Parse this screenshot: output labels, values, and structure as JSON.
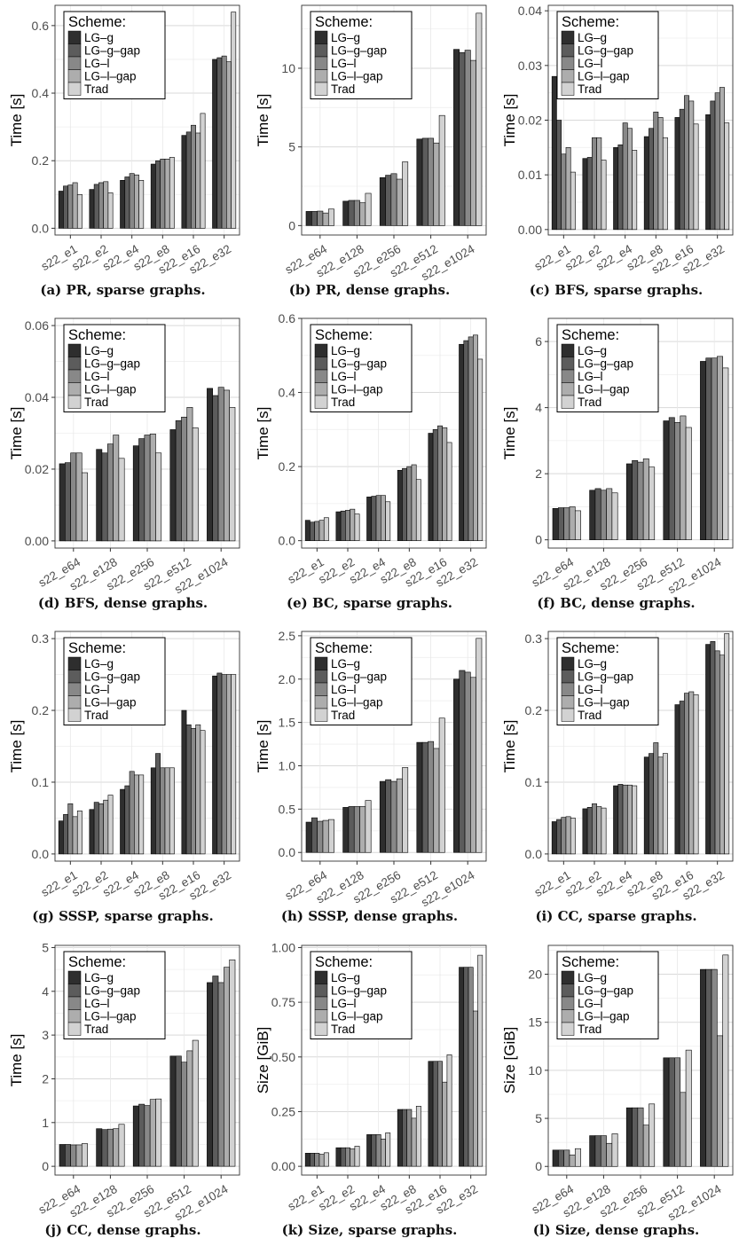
{
  "scheme_colors": [
    "#2e2e2e",
    "#5c5c5c",
    "#888888",
    "#adadad",
    "#d2d2d2"
  ],
  "chart_data": [
    {
      "type": "bar",
      "id": "a",
      "caption_label": "(a)",
      "caption_text": "PR, sparse graphs.",
      "ylabel": "Time [s]",
      "ylim": [
        -0.02,
        0.66
      ],
      "yticks": [
        "0.0",
        "0.2",
        "0.4",
        "0.6"
      ],
      "ytick_values": [
        0.0,
        0.2,
        0.4,
        0.6
      ],
      "categories": [
        "s22_e1",
        "s22_e2",
        "s22_e4",
        "s22_e8",
        "s22_e16",
        "s22_e32"
      ],
      "legend_title": "Scheme:",
      "legend_position": "top-left",
      "series": [
        {
          "name": "LG–g",
          "values": [
            0.11,
            0.115,
            0.142,
            0.19,
            0.275,
            0.5
          ]
        },
        {
          "name": "LG–g–gap",
          "values": [
            0.125,
            0.13,
            0.152,
            0.2,
            0.285,
            0.505
          ]
        },
        {
          "name": "LG–l",
          "values": [
            0.128,
            0.135,
            0.162,
            0.205,
            0.305,
            0.51
          ]
        },
        {
          "name": "LG–l–gap",
          "values": [
            0.135,
            0.138,
            0.158,
            0.205,
            0.282,
            0.493
          ]
        },
        {
          "name": "Trad",
          "values": [
            0.1,
            0.105,
            0.142,
            0.21,
            0.34,
            0.64
          ]
        }
      ]
    },
    {
      "type": "bar",
      "id": "b",
      "caption_label": "(b)",
      "caption_text": "PR, dense graphs.",
      "ylabel": "Time [s]",
      "ylim": [
        -0.6,
        14
      ],
      "yticks": [
        "0",
        "5",
        "10"
      ],
      "ytick_values": [
        0,
        5,
        10
      ],
      "categories": [
        "s22_e64",
        "s22_e128",
        "s22_e256",
        "s22_e512",
        "s22_e1024"
      ],
      "legend_title": "Scheme:",
      "legend_position": "top-left",
      "series": [
        {
          "name": "LG–g",
          "values": [
            0.9,
            1.55,
            3.05,
            5.5,
            11.2
          ]
        },
        {
          "name": "LG–g–gap",
          "values": [
            0.9,
            1.6,
            3.2,
            5.55,
            11.0
          ]
        },
        {
          "name": "LG–l",
          "values": [
            0.92,
            1.6,
            3.3,
            5.55,
            11.15
          ]
        },
        {
          "name": "LG–l–gap",
          "values": [
            0.8,
            1.45,
            2.95,
            5.25,
            10.5
          ]
        },
        {
          "name": "Trad",
          "values": [
            1.05,
            2.05,
            4.05,
            7.0,
            13.5
          ]
        }
      ]
    },
    {
      "type": "bar",
      "id": "c",
      "caption_label": "(c)",
      "caption_text": "BFS, sparse graphs.",
      "ylabel": "Time [s]",
      "ylim": [
        -0.001,
        0.041
      ],
      "yticks": [
        "0.00",
        "0.01",
        "0.02",
        "0.03",
        "0.04"
      ],
      "ytick_values": [
        0,
        0.01,
        0.02,
        0.03,
        0.04
      ],
      "categories": [
        "s22_e1",
        "s22_e2",
        "s22_e4",
        "s22_e8",
        "s22_e16",
        "s22_e32"
      ],
      "legend_title": "Scheme:",
      "legend_position": "top-left",
      "series": [
        {
          "name": "LG–g",
          "values": [
            0.028,
            0.013,
            0.015,
            0.017,
            0.0205,
            0.021
          ]
        },
        {
          "name": "LG–g–gap",
          "values": [
            0.02,
            0.0132,
            0.0155,
            0.0185,
            0.022,
            0.0235
          ]
        },
        {
          "name": "LG–l",
          "values": [
            0.0138,
            0.0168,
            0.0195,
            0.0215,
            0.0245,
            0.025
          ]
        },
        {
          "name": "LG–l–gap",
          "values": [
            0.015,
            0.0168,
            0.0185,
            0.0205,
            0.0235,
            0.026
          ]
        },
        {
          "name": "Trad",
          "values": [
            0.0105,
            0.0127,
            0.0145,
            0.0168,
            0.0193,
            0.0195
          ]
        }
      ]
    },
    {
      "type": "bar",
      "id": "d",
      "caption_label": "(d)",
      "caption_text": "BFS, dense graphs.",
      "ylabel": "Time [s]",
      "ylim": [
        -0.002,
        0.062
      ],
      "yticks": [
        "0.00",
        "0.02",
        "0.04",
        "0.06"
      ],
      "ytick_values": [
        0,
        0.02,
        0.04,
        0.06
      ],
      "categories": [
        "s22_e64",
        "s22_e128",
        "s22_e256",
        "s22_e512",
        "s22_e1024"
      ],
      "legend_title": "Scheme:",
      "legend_position": "top-left",
      "series": [
        {
          "name": "LG–g",
          "values": [
            0.0215,
            0.0255,
            0.0265,
            0.031,
            0.0425
          ]
        },
        {
          "name": "LG–g–gap",
          "values": [
            0.0218,
            0.0245,
            0.0285,
            0.0335,
            0.0405
          ]
        },
        {
          "name": "LG–l",
          "values": [
            0.0245,
            0.027,
            0.0295,
            0.0345,
            0.0428
          ]
        },
        {
          "name": "LG–l–gap",
          "values": [
            0.0245,
            0.0295,
            0.0298,
            0.0372,
            0.042
          ]
        },
        {
          "name": "Trad",
          "values": [
            0.019,
            0.023,
            0.0245,
            0.0315,
            0.0372
          ]
        }
      ]
    },
    {
      "type": "bar",
      "id": "e",
      "caption_label": "(e)",
      "caption_text": "BC, sparse graphs.",
      "ylabel": "Time [s]",
      "ylim": [
        -0.02,
        0.6
      ],
      "yticks": [
        "0.0",
        "0.2",
        "0.4",
        "0.6"
      ],
      "ytick_values": [
        0,
        0.2,
        0.4,
        0.6
      ],
      "categories": [
        "s22_e1",
        "s22_e2",
        "s22_e4",
        "s22_e8",
        "s22_e16",
        "s22_e32"
      ],
      "legend_title": "Scheme:",
      "legend_position": "top-left",
      "series": [
        {
          "name": "LG–g",
          "values": [
            0.055,
            0.078,
            0.118,
            0.19,
            0.29,
            0.53
          ]
        },
        {
          "name": "LG–g–gap",
          "values": [
            0.05,
            0.08,
            0.12,
            0.195,
            0.3,
            0.54
          ]
        },
        {
          "name": "LG–l",
          "values": [
            0.052,
            0.082,
            0.122,
            0.2,
            0.31,
            0.55
          ]
        },
        {
          "name": "LG–l–gap",
          "values": [
            0.055,
            0.085,
            0.122,
            0.205,
            0.305,
            0.555
          ]
        },
        {
          "name": "Trad",
          "values": [
            0.062,
            0.072,
            0.105,
            0.165,
            0.265,
            0.49
          ]
        }
      ]
    },
    {
      "type": "bar",
      "id": "f",
      "caption_label": "(f)",
      "caption_text": "BC, dense graphs.",
      "ylabel": "Time [s]",
      "ylim": [
        -0.25,
        6.7
      ],
      "yticks": [
        "0",
        "2",
        "4",
        "6"
      ],
      "ytick_values": [
        0,
        2,
        4,
        6
      ],
      "categories": [
        "s22_e64",
        "s22_e128",
        "s22_e256",
        "s22_e512",
        "s22_e1024"
      ],
      "legend_title": "Scheme:",
      "legend_position": "top-left",
      "series": [
        {
          "name": "LG–g",
          "values": [
            0.95,
            1.5,
            2.3,
            3.6,
            5.4
          ]
        },
        {
          "name": "LG–g–gap",
          "values": [
            0.97,
            1.55,
            2.4,
            3.7,
            5.5
          ]
        },
        {
          "name": "LG–l",
          "values": [
            0.97,
            1.5,
            2.35,
            3.55,
            5.5
          ]
        },
        {
          "name": "LG–l–gap",
          "values": [
            1.0,
            1.55,
            2.45,
            3.75,
            5.55
          ]
        },
        {
          "name": "Trad",
          "values": [
            0.88,
            1.42,
            2.2,
            3.4,
            5.2
          ]
        }
      ]
    },
    {
      "type": "bar",
      "id": "g",
      "caption_label": "(g)",
      "caption_text": "SSSP, sparse graphs.",
      "ylabel": "Time [s]",
      "ylim": [
        -0.01,
        0.31
      ],
      "yticks": [
        "0.0",
        "0.1",
        "0.2",
        "0.3"
      ],
      "ytick_values": [
        0,
        0.1,
        0.2,
        0.3
      ],
      "categories": [
        "s22_e1",
        "s22_e2",
        "s22_e4",
        "s22_e8",
        "s22_e16",
        "s22_e32"
      ],
      "legend_title": "Scheme:",
      "legend_position": "top-left",
      "series": [
        {
          "name": "LG–g",
          "values": [
            0.046,
            0.062,
            0.09,
            0.12,
            0.2,
            0.248
          ]
        },
        {
          "name": "LG–g–gap",
          "values": [
            0.055,
            0.072,
            0.095,
            0.14,
            0.18,
            0.252
          ]
        },
        {
          "name": "LG–l",
          "values": [
            0.07,
            0.07,
            0.115,
            0.12,
            0.175,
            0.25
          ]
        },
        {
          "name": "LG–l–gap",
          "values": [
            0.052,
            0.075,
            0.11,
            0.12,
            0.18,
            0.25
          ]
        },
        {
          "name": "Trad",
          "values": [
            0.06,
            0.082,
            0.11,
            0.12,
            0.172,
            0.25
          ]
        }
      ]
    },
    {
      "type": "bar",
      "id": "h",
      "caption_label": "(h)",
      "caption_text": "SSSP, dense graphs.",
      "ylabel": "Time [s]",
      "ylim": [
        -0.1,
        2.55
      ],
      "yticks": [
        "0.0",
        "0.5",
        "1.0",
        "1.5",
        "2.0",
        "2.5"
      ],
      "ytick_values": [
        0,
        0.5,
        1.0,
        1.5,
        2.0,
        2.5
      ],
      "categories": [
        "s22_e64",
        "s22_e128",
        "s22_e256",
        "s22_e512",
        "s22_e1024"
      ],
      "legend_title": "Scheme:",
      "legend_position": "top-left",
      "series": [
        {
          "name": "LG–g",
          "values": [
            0.35,
            0.52,
            0.82,
            1.27,
            2.0
          ]
        },
        {
          "name": "LG–g–gap",
          "values": [
            0.4,
            0.53,
            0.84,
            1.27,
            2.1
          ]
        },
        {
          "name": "LG–l",
          "values": [
            0.36,
            0.53,
            0.82,
            1.28,
            2.08
          ]
        },
        {
          "name": "LG–l–gap",
          "values": [
            0.37,
            0.53,
            0.85,
            1.2,
            2.02
          ]
        },
        {
          "name": "Trad",
          "values": [
            0.38,
            0.6,
            0.98,
            1.55,
            2.47
          ]
        }
      ]
    },
    {
      "type": "bar",
      "id": "i",
      "caption_label": "(i)",
      "caption_text": "CC, sparse graphs.",
      "ylabel": "Time [s]",
      "ylim": [
        -0.01,
        0.31
      ],
      "yticks": [
        "0.0",
        "0.1",
        "0.2",
        "0.3"
      ],
      "ytick_values": [
        0,
        0.1,
        0.2,
        0.3
      ],
      "categories": [
        "s22_e1",
        "s22_e2",
        "s22_e4",
        "s22_e8",
        "s22_e16",
        "s22_e32"
      ],
      "legend_title": "Scheme:",
      "legend_position": "top-left",
      "series": [
        {
          "name": "LG–g",
          "values": [
            0.045,
            0.063,
            0.095,
            0.135,
            0.208,
            0.292
          ]
        },
        {
          "name": "LG–g–gap",
          "values": [
            0.048,
            0.065,
            0.097,
            0.14,
            0.213,
            0.296
          ]
        },
        {
          "name": "LG–l",
          "values": [
            0.051,
            0.07,
            0.096,
            0.155,
            0.224,
            0.283
          ]
        },
        {
          "name": "LG–l–gap",
          "values": [
            0.052,
            0.066,
            0.096,
            0.135,
            0.226,
            0.277
          ]
        },
        {
          "name": "Trad",
          "values": [
            0.05,
            0.064,
            0.095,
            0.14,
            0.222,
            0.307
          ]
        }
      ]
    },
    {
      "type": "bar",
      "id": "j",
      "caption_label": "(j)",
      "caption_text": "CC, dense graphs.",
      "ylabel": "Time [s]",
      "ylim": [
        -0.2,
        5.05
      ],
      "yticks": [
        "0",
        "1",
        "2",
        "3",
        "4",
        "5"
      ],
      "ytick_values": [
        0,
        1,
        2,
        3,
        4,
        5
      ],
      "categories": [
        "s22_e64",
        "s22_e128",
        "s22_e256",
        "s22_e512",
        "s22_e1024"
      ],
      "legend_title": "Scheme:",
      "legend_position": "top-left",
      "series": [
        {
          "name": "LG–g",
          "values": [
            0.5,
            0.86,
            1.38,
            2.52,
            4.2
          ]
        },
        {
          "name": "LG–g–gap",
          "values": [
            0.5,
            0.84,
            1.42,
            2.52,
            4.35
          ]
        },
        {
          "name": "LG–l",
          "values": [
            0.49,
            0.85,
            1.39,
            2.38,
            4.2
          ]
        },
        {
          "name": "LG–l–gap",
          "values": [
            0.49,
            0.86,
            1.53,
            2.64,
            4.55
          ]
        },
        {
          "name": "Trad",
          "values": [
            0.52,
            0.96,
            1.54,
            2.88,
            4.72
          ]
        }
      ]
    },
    {
      "type": "bar",
      "id": "k",
      "caption_label": "(k)",
      "caption_text": "Size, sparse graphs.",
      "ylabel": "Size [GiB]",
      "ylim": [
        -0.04,
        1.01
      ],
      "yticks": [
        "0.00",
        "0.25",
        "0.50",
        "0.75",
        "1.00"
      ],
      "ytick_values": [
        0,
        0.25,
        0.5,
        0.75,
        1.0
      ],
      "categories": [
        "s22_e1",
        "s22_e2",
        "s22_e4",
        "s22_e8",
        "s22_e16",
        "s22_e32"
      ],
      "legend_title": "Scheme:",
      "legend_position": "top-left",
      "series": [
        {
          "name": "LG–g",
          "values": [
            0.06,
            0.085,
            0.145,
            0.26,
            0.48,
            0.91
          ]
        },
        {
          "name": "LG–g–gap",
          "values": [
            0.06,
            0.085,
            0.145,
            0.26,
            0.48,
            0.91
          ]
        },
        {
          "name": "LG–l",
          "values": [
            0.06,
            0.085,
            0.145,
            0.26,
            0.48,
            0.91
          ]
        },
        {
          "name": "LG–l–gap",
          "values": [
            0.055,
            0.08,
            0.125,
            0.22,
            0.385,
            0.71
          ]
        },
        {
          "name": "Trad",
          "values": [
            0.062,
            0.092,
            0.153,
            0.275,
            0.51,
            0.965
          ]
        }
      ]
    },
    {
      "type": "bar",
      "id": "l",
      "caption_label": "(l)",
      "caption_text": "Size, dense graphs.",
      "ylabel": "Size [GiB]",
      "ylim": [
        -0.9,
        23
      ],
      "yticks": [
        "0",
        "5",
        "10",
        "15",
        "20"
      ],
      "ytick_values": [
        0,
        5,
        10,
        15,
        20
      ],
      "categories": [
        "s22_e64",
        "s22_e128",
        "s22_e256",
        "s22_e512",
        "s22_e1024"
      ],
      "legend_title": "Scheme:",
      "legend_position": "top-left",
      "series": [
        {
          "name": "LG–g",
          "values": [
            1.7,
            3.2,
            6.1,
            11.3,
            20.5
          ]
        },
        {
          "name": "LG–g–gap",
          "values": [
            1.7,
            3.2,
            6.1,
            11.3,
            20.5
          ]
        },
        {
          "name": "LG–l",
          "values": [
            1.7,
            3.2,
            6.1,
            11.3,
            20.5
          ]
        },
        {
          "name": "LG–l–gap",
          "values": [
            1.2,
            2.4,
            4.3,
            7.7,
            13.6
          ]
        },
        {
          "name": "Trad",
          "values": [
            1.85,
            3.4,
            6.5,
            12.1,
            22.0
          ]
        }
      ]
    }
  ]
}
